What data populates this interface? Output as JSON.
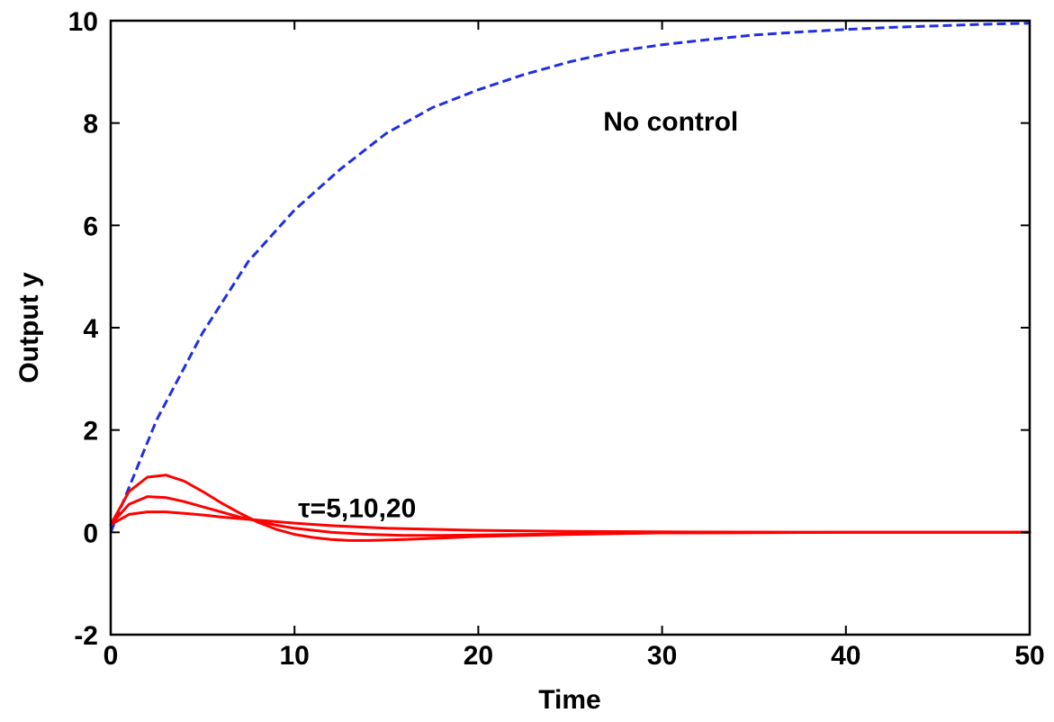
{
  "chart_data": {
    "type": "line",
    "title": "",
    "xlabel": "Time",
    "ylabel": "Output y",
    "xlim": [
      0,
      50
    ],
    "ylim": [
      -2,
      10
    ],
    "xticks": [
      "0",
      "10",
      "20",
      "30",
      "40",
      "50"
    ],
    "yticks": [
      "-2",
      "0",
      "2",
      "4",
      "6",
      "8",
      "10"
    ],
    "grid": false,
    "series": [
      {
        "color": "#1f2fe0",
        "style": "dashed",
        "x": [
          0,
          2.5,
          5,
          7.5,
          10,
          12.5,
          15,
          17.5,
          20,
          22.5,
          25,
          27.5,
          30,
          32.5,
          35,
          37.5,
          40,
          42.5,
          45,
          47.5,
          50
        ],
        "y": [
          0,
          2.2,
          3.9,
          5.3,
          6.3,
          7.1,
          7.8,
          8.3,
          8.65,
          8.95,
          9.2,
          9.4,
          9.53,
          9.63,
          9.72,
          9.78,
          9.83,
          9.87,
          9.9,
          9.93,
          9.95
        ]
      },
      {
        "color": "#ff0000",
        "style": "solid",
        "x": [
          0,
          1,
          2,
          3,
          4,
          5,
          6,
          7,
          8,
          9,
          10,
          11,
          12,
          13,
          14,
          16,
          18,
          20,
          25,
          30,
          40,
          50
        ],
        "y": [
          0.15,
          0.8,
          1.08,
          1.12,
          1.0,
          0.8,
          0.58,
          0.38,
          0.2,
          0.06,
          -0.04,
          -0.1,
          -0.14,
          -0.16,
          -0.16,
          -0.14,
          -0.11,
          -0.08,
          -0.04,
          -0.01,
          0.0,
          0.0
        ]
      },
      {
        "color": "#ff0000",
        "style": "solid",
        "x": [
          0,
          1,
          2,
          3,
          4,
          5,
          6,
          7,
          8,
          9,
          10,
          12,
          14,
          16,
          18,
          20,
          25,
          30,
          40,
          50
        ],
        "y": [
          0.15,
          0.55,
          0.7,
          0.68,
          0.6,
          0.5,
          0.4,
          0.3,
          0.22,
          0.14,
          0.08,
          0.0,
          -0.04,
          -0.06,
          -0.06,
          -0.05,
          -0.03,
          -0.01,
          0.0,
          0.0
        ]
      },
      {
        "color": "#ff0000",
        "style": "solid",
        "x": [
          0,
          1,
          2,
          3,
          4,
          5,
          6,
          8,
          10,
          12,
          15,
          20,
          25,
          30,
          40,
          50
        ],
        "y": [
          0.15,
          0.35,
          0.4,
          0.4,
          0.37,
          0.34,
          0.3,
          0.24,
          0.18,
          0.13,
          0.08,
          0.04,
          0.02,
          0.01,
          0.0,
          0.0
        ]
      }
    ],
    "annotations": [
      {
        "text": "No control",
        "x": 26.8,
        "y": 7.85
      },
      {
        "text": "τ=5,10,20",
        "x": 10.2,
        "y": 0.3
      }
    ]
  }
}
